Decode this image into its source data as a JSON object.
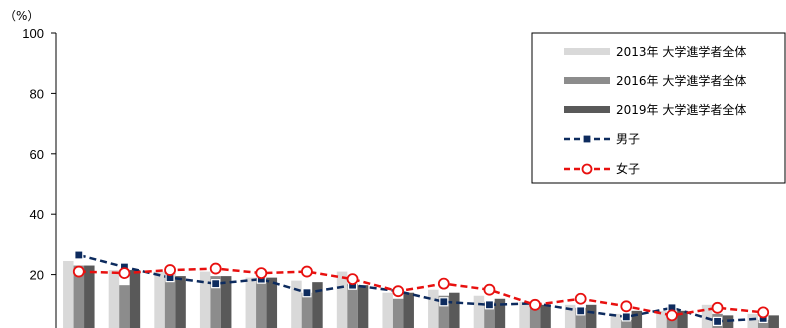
{
  "chart_data": {
    "type": "bar",
    "unit_label": "（%）",
    "ylim": [
      0,
      100
    ],
    "yticks": [
      "100",
      "80",
      "60",
      "40",
      "20"
    ],
    "grid": false,
    "legend_position": "top-right",
    "bar_series": [
      {
        "name": "2013年  大学進学者全体",
        "color": "#d9d9d9",
        "values": [
          24.5,
          21.5,
          21,
          21,
          19,
          18,
          21,
          14,
          15,
          13,
          11,
          10,
          7,
          8,
          10,
          7
        ]
      },
      {
        "name": "2016年  大学進学者全体",
        "color": "#8c8c8c",
        "values": [
          23,
          16.5,
          20.5,
          19.5,
          19,
          14,
          17,
          12,
          13,
          11,
          10,
          9,
          5,
          7,
          7,
          5
        ]
      },
      {
        "name": "2019年  大学進学者全体",
        "color": "#595959",
        "values": [
          23,
          21.5,
          19.5,
          19.5,
          19,
          17.5,
          16.5,
          14,
          14,
          12,
          10,
          10,
          8,
          8,
          6.5,
          6.5
        ]
      }
    ],
    "line_series": [
      {
        "name": "男子",
        "color": "#0d2b5e",
        "marker": "square",
        "values": [
          26.5,
          22.5,
          19,
          17,
          18.5,
          14,
          16.5,
          14.5,
          11,
          10,
          10.5,
          8,
          6,
          9,
          4.5,
          5.5
        ]
      },
      {
        "name": "女子",
        "color": "#e8100f",
        "marker": "circle",
        "values": [
          21,
          20.5,
          21.5,
          22,
          20.5,
          21,
          18.5,
          14.5,
          17,
          15,
          10,
          12,
          9.5,
          6.5,
          9,
          7.5
        ]
      }
    ]
  }
}
